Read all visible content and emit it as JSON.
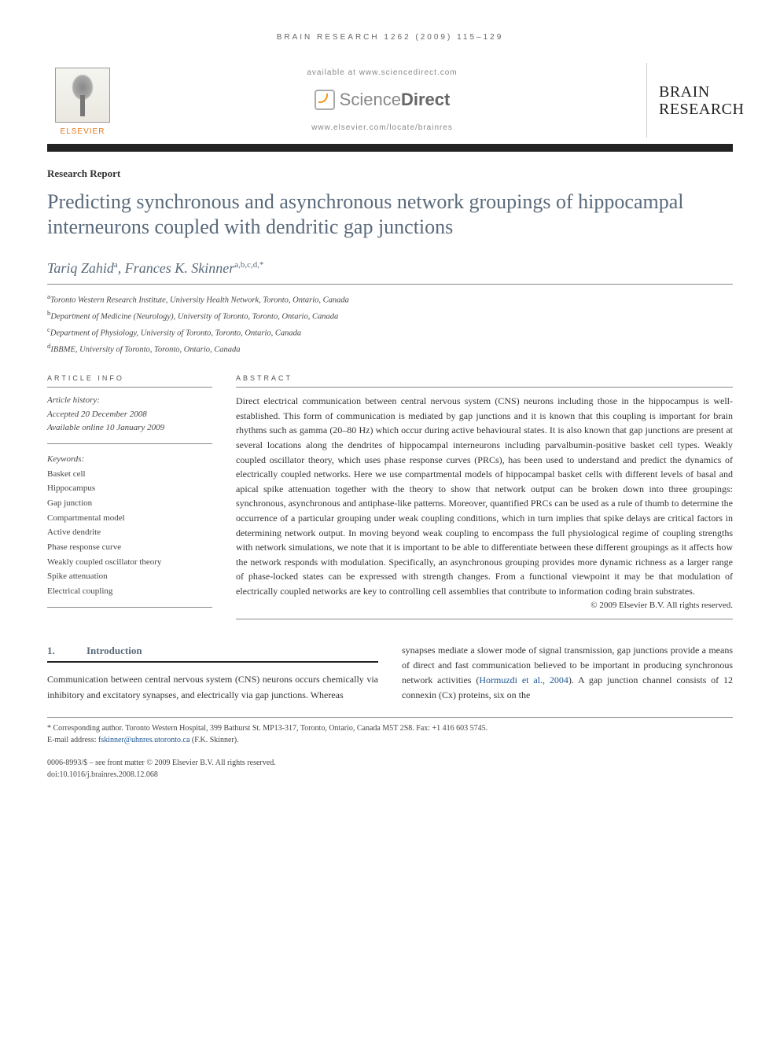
{
  "running_head": "BRAIN RESEARCH 1262 (2009) 115–129",
  "header": {
    "available_at": "available at www.sciencedirect.com",
    "sd_brand_light": "Science",
    "sd_brand_bold": "Direct",
    "locate_url": "www.elsevier.com/locate/brainres",
    "publisher_name": "ELSEVIER",
    "journal_line1": "BRAIN",
    "journal_line2": "RESEARCH"
  },
  "article": {
    "type": "Research Report",
    "title": "Predicting synchronous and asynchronous network groupings of hippocampal interneurons coupled with dendritic gap junctions",
    "authors_html": "Tariq Zahid",
    "author1": "Tariq Zahid",
    "author1_aff": "a",
    "author2": "Frances K. Skinner",
    "author2_aff": "a,b,c,d,*",
    "affiliations": {
      "a": "Toronto Western Research Institute, University Health Network, Toronto, Ontario, Canada",
      "b": "Department of Medicine (Neurology), University of Toronto, Toronto, Ontario, Canada",
      "c": "Department of Physiology, University of Toronto, Toronto, Ontario, Canada",
      "d": "IBBME, University of Toronto, Toronto, Ontario, Canada"
    }
  },
  "info": {
    "head": "ARTICLE INFO",
    "history_label": "Article history:",
    "accepted": "Accepted 20 December 2008",
    "online": "Available online 10 January 2009",
    "keywords_label": "Keywords:",
    "keywords": [
      "Basket cell",
      "Hippocampus",
      "Gap junction",
      "Compartmental model",
      "Active dendrite",
      "Phase response curve",
      "Weakly coupled oscillator theory",
      "Spike attenuation",
      "Electrical coupling"
    ]
  },
  "abstract": {
    "head": "ABSTRACT",
    "text": "Direct electrical communication between central nervous system (CNS) neurons including those in the hippocampus is well-established. This form of communication is mediated by gap junctions and it is known that this coupling is important for brain rhythms such as gamma (20–80 Hz) which occur during active behavioural states. It is also known that gap junctions are present at several locations along the dendrites of hippocampal interneurons including parvalbumin-positive basket cell types. Weakly coupled oscillator theory, which uses phase response curves (PRCs), has been used to understand and predict the dynamics of electrically coupled networks. Here we use compartmental models of hippocampal basket cells with different levels of basal and apical spike attenuation together with the theory to show that network output can be broken down into three groupings: synchronous, asynchronous and antiphase-like patterns. Moreover, quantified PRCs can be used as a rule of thumb to determine the occurrence of a particular grouping under weak coupling conditions, which in turn implies that spike delays are critical factors in determining network output. In moving beyond weak coupling to encompass the full physiological regime of coupling strengths with network simulations, we note that it is important to be able to differentiate between these different groupings as it affects how the network responds with modulation. Specifically, an asynchronous grouping provides more dynamic richness as a larger range of phase-locked states can be expressed with strength changes. From a functional viewpoint it may be that modulation of electrically coupled networks are key to controlling cell assemblies that contribute to information coding brain substrates.",
    "copyright": "© 2009 Elsevier B.V. All rights reserved."
  },
  "section1": {
    "num": "1.",
    "title": "Introduction",
    "col1": "Communication between central nervous system (CNS) neurons occurs chemically via inhibitory and excitatory synapses, and electrically via gap junctions. Whereas",
    "col2_pre": "synapses mediate a slower mode of signal transmission, gap junctions provide a means of direct and fast communication believed to be important in producing synchronous network activities (",
    "col2_cite": "Hormuzdi et al., 2004",
    "col2_post": "). A gap junction channel consists of 12 connexin (Cx) proteins, six on the"
  },
  "footnote": {
    "corr": "* Corresponding author. Toronto Western Hospital, 399 Bathurst St. MP13-317, Toronto, Ontario, Canada M5T 2S8. Fax: +1 416 603 5745.",
    "email_label": "E-mail address: ",
    "email": "fskinner@uhnres.utoronto.ca",
    "email_owner": " (F.K. Skinner)."
  },
  "footer": {
    "issn": "0006-8993/$ – see front matter © 2009 Elsevier B.V. All rights reserved.",
    "doi": "doi:10.1016/j.brainres.2008.12.068"
  }
}
